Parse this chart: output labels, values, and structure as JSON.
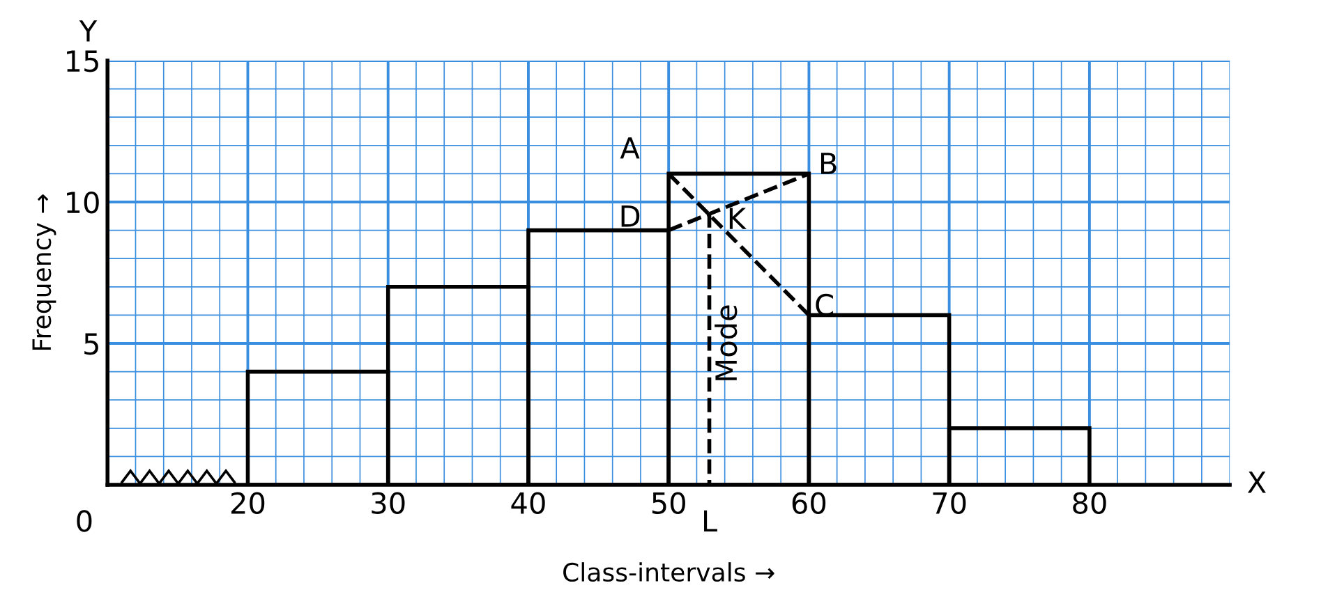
{
  "chart_data": {
    "type": "histogram",
    "xlabel": "Class-intervals →",
    "ylabel": "Frequency →",
    "bins": [
      20,
      30,
      40,
      50,
      60,
      70,
      80
    ],
    "values": [
      4,
      7,
      9,
      11,
      6,
      2
    ],
    "color": "#000000",
    "xlim": [
      10,
      90
    ],
    "ylim": [
      0,
      15
    ],
    "xticks": [
      {
        "value": 12,
        "label": null
      },
      {
        "value": 14,
        "label": null
      },
      {
        "value": 16,
        "label": null
      },
      {
        "value": 18,
        "label": null
      },
      20,
      {
        "value": 22,
        "label": null
      },
      {
        "value": 24,
        "label": null
      },
      {
        "value": 26,
        "label": null
      },
      {
        "value": 28,
        "label": null
      },
      30,
      {
        "value": 32,
        "label": null
      },
      {
        "value": 34,
        "label": null
      },
      {
        "value": 36,
        "label": null
      },
      {
        "value": 38,
        "label": null
      },
      40,
      {
        "value": 42,
        "label": null
      },
      {
        "value": 44,
        "label": null
      },
      {
        "value": 46,
        "label": null
      },
      {
        "value": 48,
        "label": null
      },
      50,
      {
        "value": 52,
        "label": null
      },
      {
        "value": 54,
        "label": null
      },
      {
        "value": 56,
        "label": null
      },
      {
        "value": 58,
        "label": null
      },
      60,
      {
        "value": 62,
        "label": null
      },
      {
        "value": 64,
        "label": null
      },
      {
        "value": 66,
        "label": null
      },
      {
        "value": 68,
        "label": null
      },
      70,
      {
        "value": 72,
        "label": null
      },
      {
        "value": 74,
        "label": null
      },
      {
        "value": 76,
        "label": null
      },
      {
        "value": 78,
        "label": null
      },
      80,
      {
        "value": 82,
        "label": null
      },
      {
        "value": 84,
        "label": null
      },
      {
        "value": 86,
        "label": null
      },
      {
        "value": 88,
        "label": null
      },
      {
        "value": 90,
        "label": null
      }
    ],
    "yticks": [
      {
        "value": 1,
        "label": null
      },
      {
        "value": 2,
        "label": null
      },
      {
        "value": 3,
        "label": null
      },
      {
        "value": 4,
        "label": null
      },
      5,
      {
        "value": 6,
        "label": null
      },
      {
        "value": 7,
        "label": null
      },
      {
        "value": 8,
        "label": null
      },
      {
        "value": 9,
        "label": null
      },
      10,
      {
        "value": 11,
        "label": null
      },
      {
        "value": 12,
        "label": null
      },
      {
        "value": 13,
        "label": null
      },
      {
        "value": 14,
        "label": null
      },
      15
    ],
    "grid": true,
    "series": [
      {
        "type": "line",
        "x": [
          50,
          60
        ],
        "values": [
          11,
          6
        ],
        "color": "#000000",
        "line_style": "dashed"
      },
      {
        "type": "line",
        "x": [
          50,
          60
        ],
        "values": [
          9,
          11
        ],
        "color": "#000000",
        "line_style": "dashed"
      },
      {
        "type": "line",
        "x": [
          52.9,
          52.9
        ],
        "values": [
          9.6,
          0
        ],
        "color": "#000000",
        "line_style": "dashed"
      }
    ],
    "annotations": [
      {
        "text": "A",
        "x": 50,
        "y": 11
      },
      {
        "text": "B",
        "x": 60,
        "y": 11
      },
      {
        "text": "C",
        "x": 60,
        "y": 6
      },
      {
        "text": "D",
        "x": 50,
        "y": 9
      },
      {
        "text": "K",
        "x": 52.9,
        "y": 9.6
      },
      {
        "text": "L",
        "x": 52.9,
        "y": 0
      },
      {
        "text": "Mode",
        "x": 52.9,
        "y": 5
      },
      "0",
      "X",
      "Y"
    ]
  }
}
